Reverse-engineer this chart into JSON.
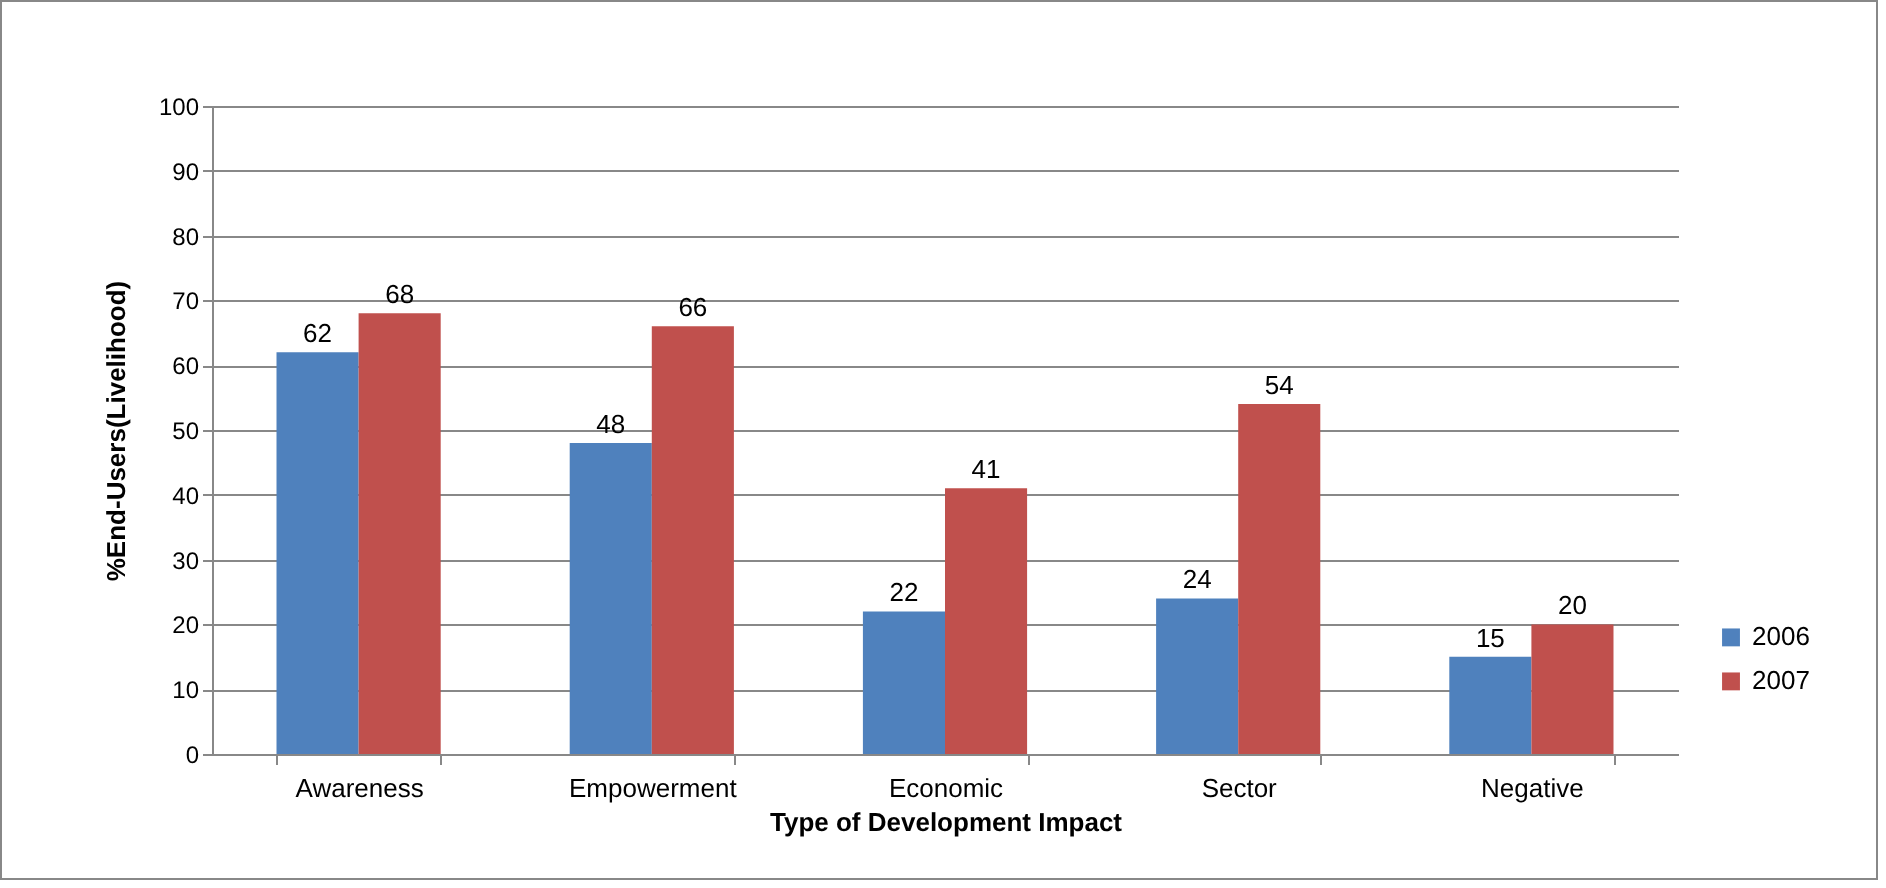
{
  "chart_data": {
    "type": "bar",
    "xlabel": "Type of Development Impact",
    "ylabel": "%End-Users(Livelihood)",
    "categories": [
      "Awareness",
      "Empowerment",
      "Economic",
      "Sector",
      "Negative"
    ],
    "series": [
      {
        "name": "2006",
        "color": "#4f81bd",
        "values": [
          62,
          48,
          22,
          24,
          15
        ]
      },
      {
        "name": "2007",
        "color": "#c0504d",
        "values": [
          68,
          66,
          41,
          54,
          20
        ]
      }
    ],
    "ylim": [
      0,
      100
    ],
    "yticks": [
      0,
      10,
      20,
      30,
      40,
      50,
      60,
      70,
      80,
      90,
      100
    ],
    "grid": "y",
    "legend": "right",
    "data_labels": true
  }
}
